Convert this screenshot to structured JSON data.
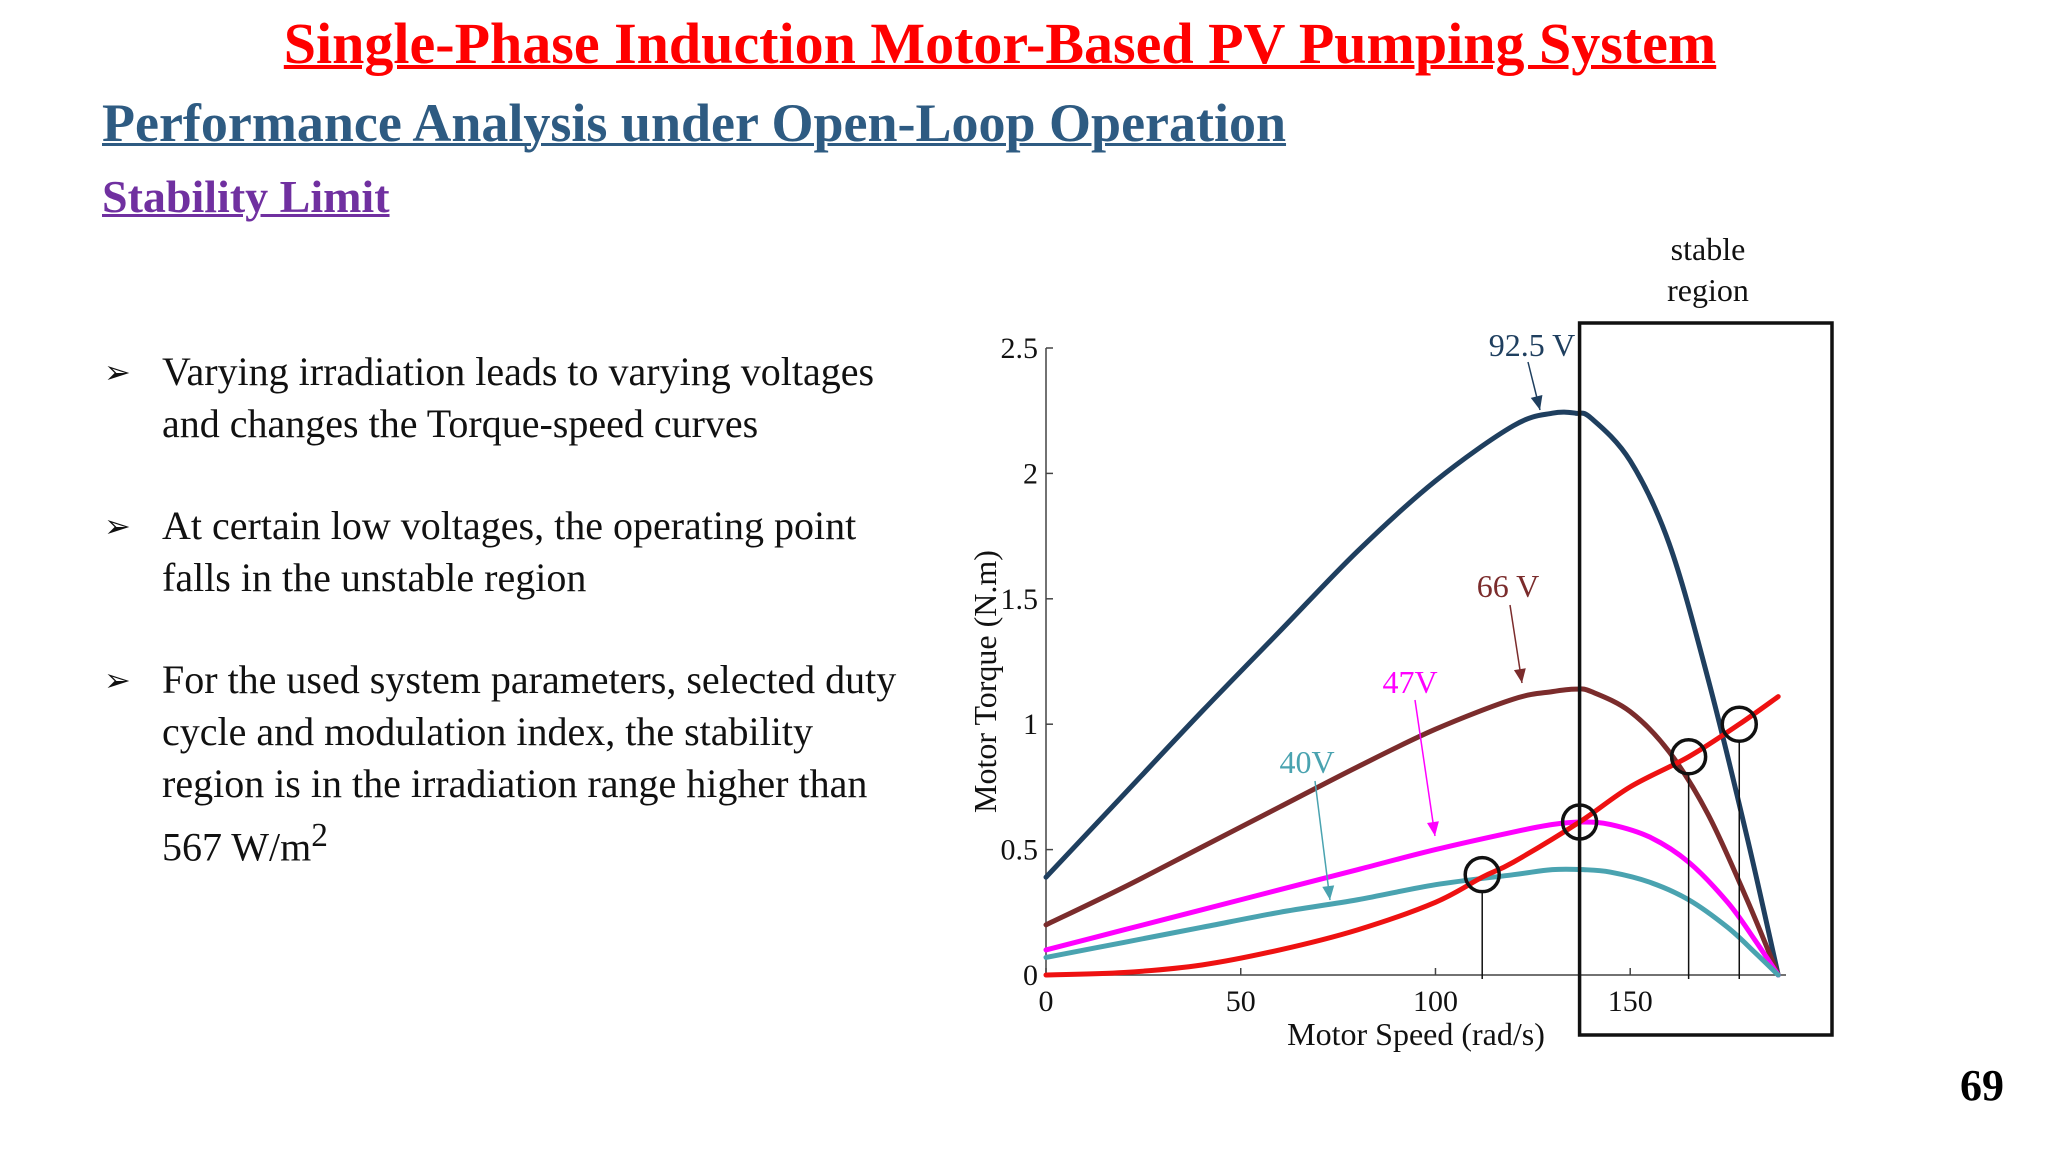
{
  "slide": {
    "title": "Single-Phase Induction Motor-Based PV Pumping System",
    "subtitle": "Performance Analysis under Open-Loop Operation",
    "section": "Stability Limit",
    "page_number": "69",
    "colors": {
      "title": "#ff0000",
      "subtitle": "#2e5b82",
      "section": "#7030a0"
    }
  },
  "bullets": [
    {
      "icon": "arrow-bullet-icon",
      "text": "Varying irradiation leads to varying voltages and changes the Torque-speed curves"
    },
    {
      "icon": "arrow-bullet-icon",
      "text": "At certain low voltages, the operating point falls in the unstable region"
    },
    {
      "icon": "arrow-bullet-icon",
      "text": "For the used system parameters, selected duty cycle and modulation index, the stability region is in the irradiation range higher than 567 W/m",
      "superscript": "2"
    }
  ],
  "chart_data": {
    "type": "line",
    "xlabel": "Motor Speed (rad/s)",
    "ylabel": "Motor Torque (N.m)",
    "xlim": [
      0,
      190
    ],
    "ylim": [
      0,
      2.5
    ],
    "xticks": [
      "0",
      "50",
      "100",
      "150"
    ],
    "yticks": [
      "0",
      "0.5",
      "1",
      "1.5",
      "2",
      "2.5"
    ],
    "grid": false,
    "series": [
      {
        "name": "92.5 V",
        "color": "#1f3f5f",
        "x": [
          0,
          20,
          40,
          60,
          80,
          100,
          120,
          130,
          136,
          140,
          150,
          160,
          170,
          180,
          188
        ],
        "y": [
          0.39,
          0.72,
          1.05,
          1.37,
          1.69,
          1.97,
          2.19,
          2.24,
          2.24,
          2.22,
          2.05,
          1.72,
          1.18,
          0.55,
          0.0
        ]
      },
      {
        "name": "66 V",
        "color": "#7b2c2c",
        "x": [
          0,
          20,
          40,
          60,
          80,
          100,
          120,
          130,
          136,
          140,
          150,
          160,
          170,
          180,
          188
        ],
        "y": [
          0.2,
          0.35,
          0.51,
          0.67,
          0.83,
          0.98,
          1.1,
          1.13,
          1.14,
          1.13,
          1.05,
          0.89,
          0.64,
          0.3,
          0.0
        ]
      },
      {
        "name": "47V",
        "color": "#ff00ff",
        "x": [
          0,
          20,
          40,
          60,
          80,
          100,
          120,
          130,
          138,
          145,
          155,
          165,
          175,
          182,
          188
        ],
        "y": [
          0.1,
          0.18,
          0.26,
          0.34,
          0.42,
          0.5,
          0.57,
          0.6,
          0.61,
          0.6,
          0.55,
          0.45,
          0.29,
          0.14,
          0.0
        ]
      },
      {
        "name": "40V",
        "color": "#4aa3b0",
        "x": [
          0,
          20,
          40,
          60,
          80,
          100,
          120,
          130,
          138,
          145,
          155,
          165,
          175,
          182,
          188
        ],
        "y": [
          0.07,
          0.13,
          0.19,
          0.25,
          0.3,
          0.36,
          0.4,
          0.42,
          0.42,
          0.41,
          0.37,
          0.3,
          0.19,
          0.09,
          0.0
        ]
      },
      {
        "name": "load",
        "color": "#ee1111",
        "x": [
          0,
          20,
          40,
          60,
          80,
          100,
          112,
          120,
          137,
          150,
          165,
          178,
          188
        ],
        "y": [
          0.0,
          0.01,
          0.04,
          0.1,
          0.18,
          0.29,
          0.39,
          0.45,
          0.61,
          0.75,
          0.87,
          1.0,
          1.11
        ]
      }
    ],
    "operating_points": [
      {
        "x": 112,
        "y": 0.4
      },
      {
        "x": 137,
        "y": 0.61
      },
      {
        "x": 165,
        "y": 0.87
      },
      {
        "x": 178,
        "y": 1.0
      }
    ],
    "stable_region": {
      "x_from": 137,
      "label": "stable region"
    },
    "annotations": [
      {
        "text": "92.5 V",
        "color": "#1f3f5f"
      },
      {
        "text": "66 V",
        "color": "#7b2c2c"
      },
      {
        "text": "47V",
        "color": "#ff00ff"
      },
      {
        "text": "40V",
        "color": "#4aa3b0"
      },
      {
        "text": "stable",
        "color": "#111111"
      },
      {
        "text": "region",
        "color": "#111111"
      }
    ]
  }
}
